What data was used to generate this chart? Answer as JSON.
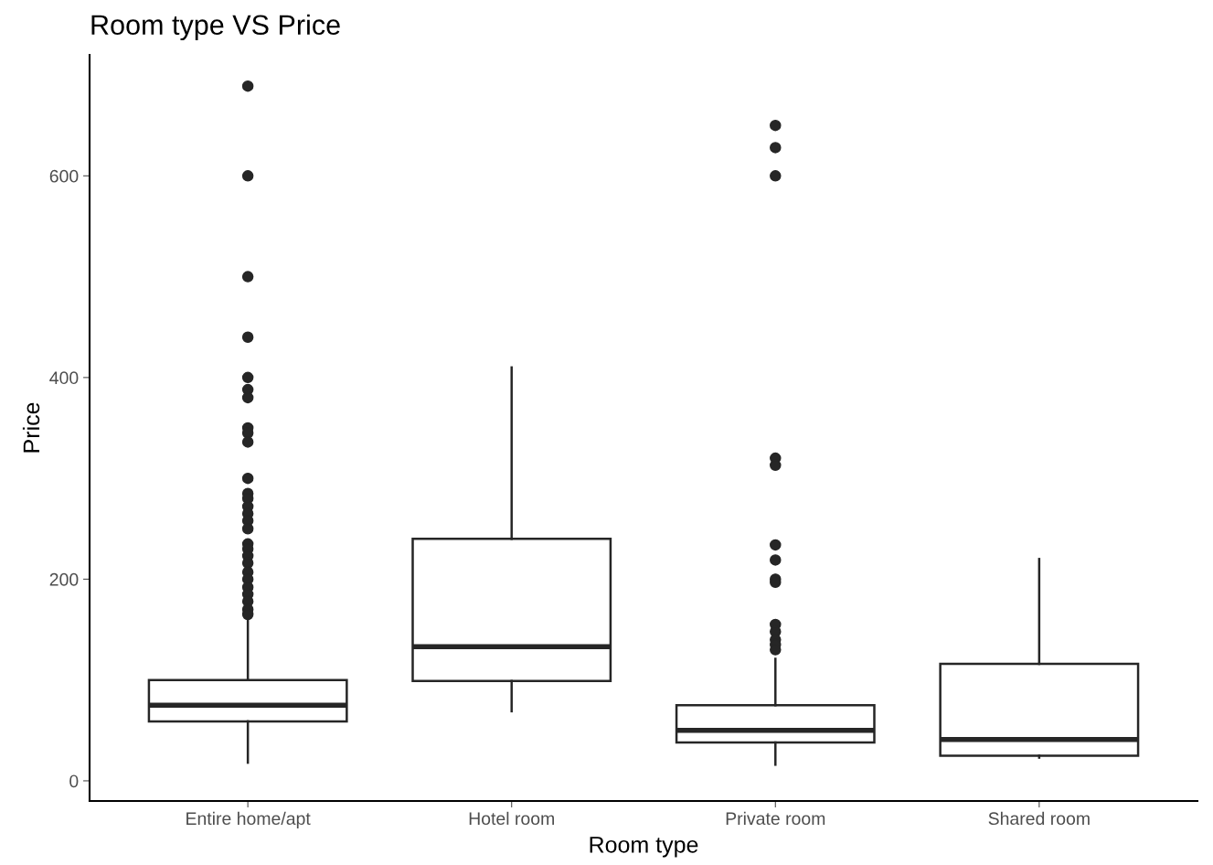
{
  "chart_data": {
    "type": "box",
    "title": "Room type VS Price",
    "xlabel": "Room type",
    "ylabel": "Price",
    "categories": [
      "Entire home/apt",
      "Hotel room",
      "Private room",
      "Shared room"
    ],
    "boxes": [
      {
        "low": 18,
        "q1": 59,
        "median": 75,
        "q3": 100,
        "high": 160,
        "outliers": [
          689,
          600,
          500,
          440,
          400,
          388,
          380,
          350,
          345,
          336,
          300,
          285,
          280,
          272,
          265,
          258,
          250,
          235,
          230,
          223,
          216,
          207,
          200,
          192,
          185,
          178,
          170,
          165
        ]
      },
      {
        "low": 69,
        "q1": 99,
        "median": 133,
        "q3": 240,
        "high": 410
      },
      {
        "low": 16,
        "q1": 38,
        "median": 50,
        "q3": 75,
        "high": 121,
        "outliers": [
          650,
          628,
          600,
          320,
          313,
          234,
          219,
          200,
          197,
          155,
          148,
          140,
          135,
          130
        ]
      },
      {
        "low": 23,
        "q1": 25,
        "median": 41,
        "q3": 116,
        "high": 220
      }
    ],
    "color": "#262626",
    "ylim": [
      -20,
      720
    ],
    "yticks": [
      0,
      200,
      400,
      600
    ],
    "grid": false
  }
}
